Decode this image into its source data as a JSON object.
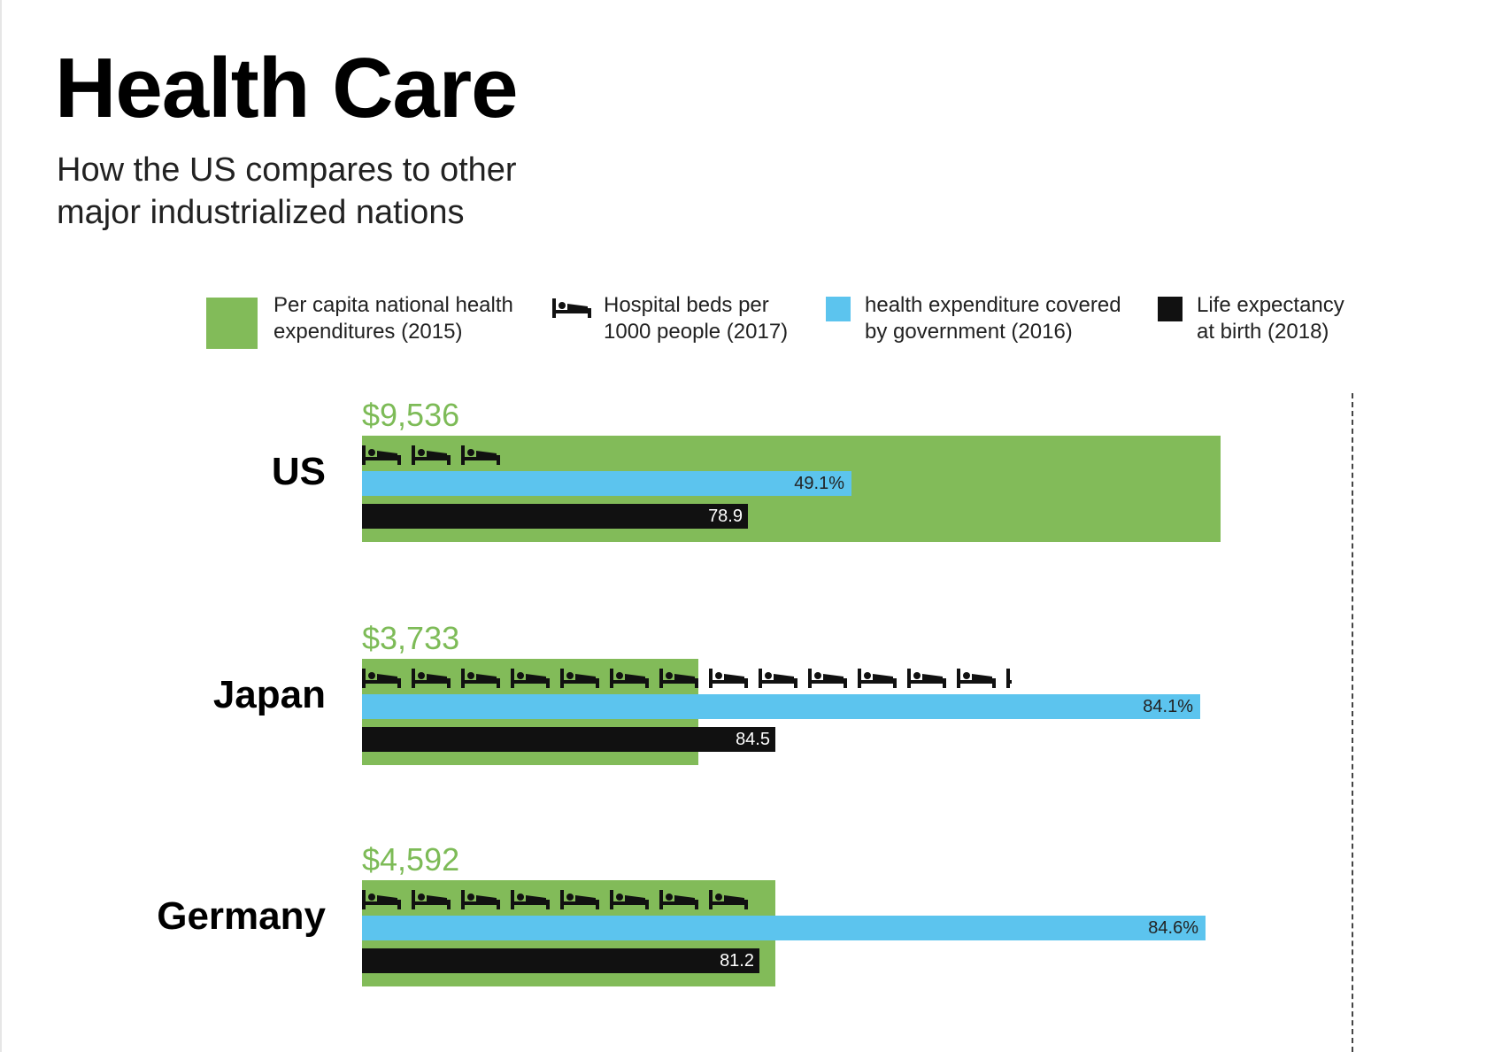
{
  "title": "Health Care",
  "subtitle_lines": [
    "How the US compares to other",
    "major industrialized nations"
  ],
  "legend": [
    {
      "lines": [
        "Per capita national health",
        "expenditures (2015)"
      ],
      "color": "#82bb59",
      "icon": "green-square"
    },
    {
      "lines": [
        "Hospital beds per",
        "1000 people (2017)"
      ],
      "color": "#111111",
      "icon": "bed-icon"
    },
    {
      "lines": [
        "health expenditure covered",
        "by government (2016)"
      ],
      "color": "#5cc4ee",
      "icon": "blue-square"
    },
    {
      "lines": [
        "Life expectancy",
        "at birth (2018)"
      ],
      "color": "#111111",
      "icon": "black-square"
    }
  ],
  "colors": {
    "spending": "#82bb59",
    "spending_label": "#7dbb57",
    "government": "#5cc4ee",
    "life": "#111111"
  },
  "chart_data": {
    "type": "bar",
    "categories": [
      "US",
      "Japan",
      "Germany"
    ],
    "series": [
      {
        "name": "Per capita national health expenditures (2015)",
        "values": [
          9536,
          3733,
          4592
        ],
        "labels": [
          "$9,536",
          "$3,733",
          "$4,592"
        ]
      },
      {
        "name": "Hospital beds per 1000 people (2017)",
        "values": [
          2.8,
          13.1,
          8.0
        ]
      },
      {
        "name": "health expenditure covered by government (2016)",
        "values": [
          49.1,
          84.1,
          84.6
        ],
        "labels": [
          "49.1%",
          "84.1%",
          "84.6%"
        ]
      },
      {
        "name": "Life expectancy at birth (2018)",
        "values": [
          78.9,
          84.5,
          81.2
        ],
        "labels": [
          "78.9",
          "84.5",
          "81.2"
        ]
      }
    ],
    "xlabel": "",
    "ylabel": "",
    "grid": false,
    "legend_position": "top"
  }
}
